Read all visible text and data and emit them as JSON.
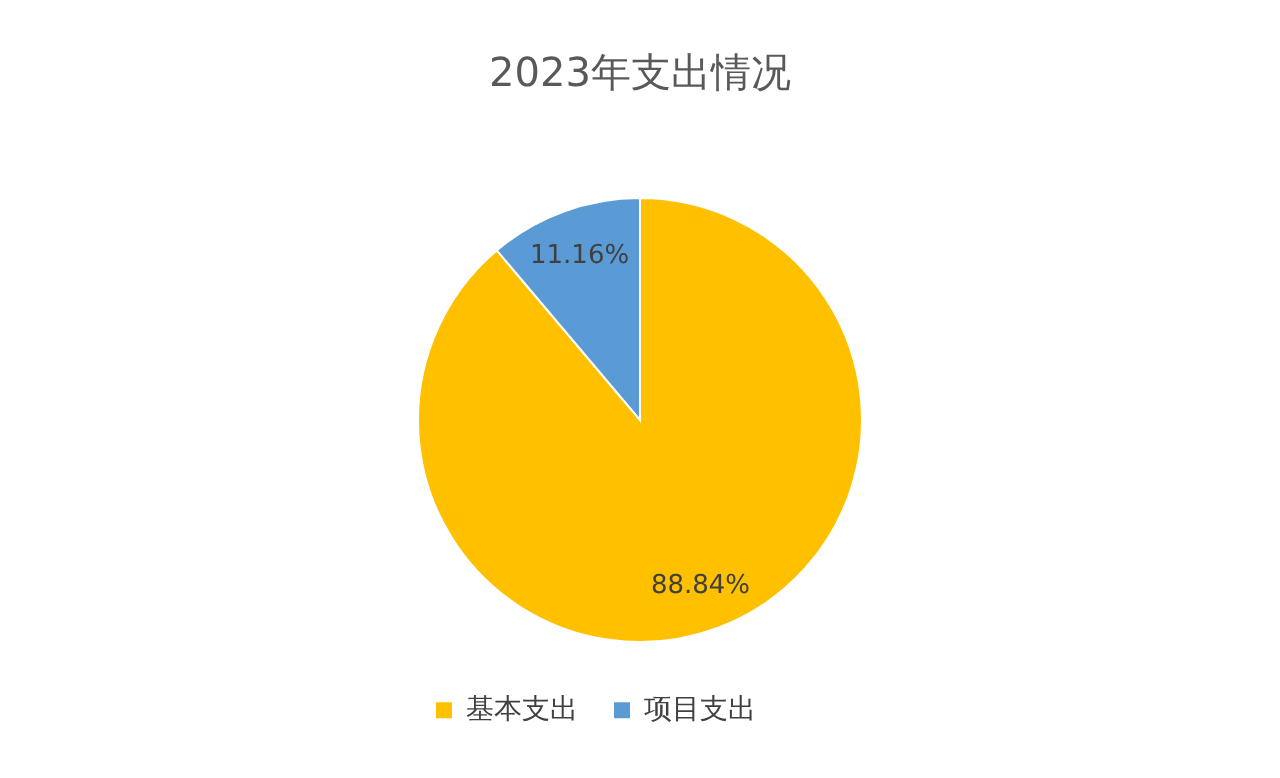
{
  "chart_data": {
    "type": "pie",
    "title": "2023年支出情况",
    "categories": [
      "基本支出",
      "项目支出"
    ],
    "values": [
      88.84,
      11.16
    ],
    "colors": [
      "#ffc000",
      "#5b9bd5"
    ],
    "value_labels": [
      "88.84%",
      "11.16%"
    ],
    "legend": "bottom"
  }
}
